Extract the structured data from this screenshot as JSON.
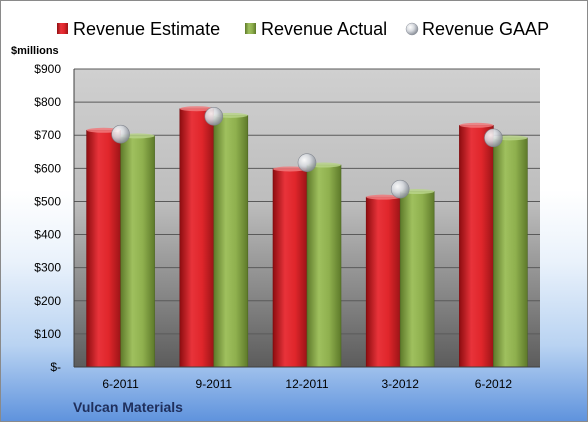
{
  "chart_data": {
    "type": "bar",
    "company": "Vulcan Materials",
    "units_label": "$millions",
    "categories": [
      "6-2011",
      "9-2011",
      "12-2011",
      "3-2012",
      "6-2012"
    ],
    "series": [
      {
        "name": "Revenue Estimate",
        "kind": "bar",
        "color": "#e0262b",
        "values": [
          715,
          780,
          598,
          513,
          730
        ]
      },
      {
        "name": "Revenue Actual",
        "kind": "bar",
        "color": "#8fb04e",
        "values": [
          698,
          760,
          610,
          530,
          692
        ]
      },
      {
        "name": "Revenue GAAP",
        "kind": "marker",
        "color": "#c9cdd3",
        "values": [
          703,
          757,
          617,
          537,
          692
        ]
      }
    ],
    "yticks": [
      "$-",
      "$100",
      "$200",
      "$300",
      "$400",
      "$500",
      "$600",
      "$700",
      "$800",
      "$900"
    ],
    "ylim": [
      0,
      900
    ],
    "legend_position": "top",
    "grid": true
  }
}
